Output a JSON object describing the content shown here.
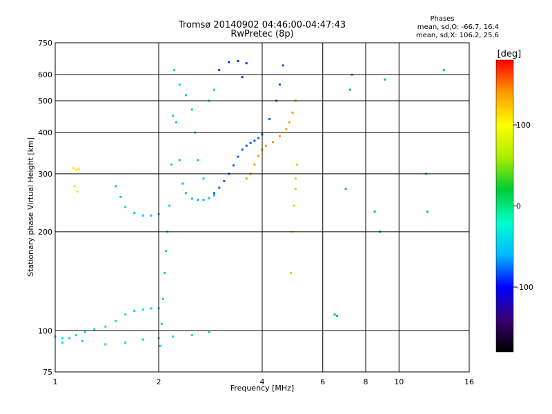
{
  "header": {
    "title_line1": "Tromsø 20140902 04:46:00-04:47:43",
    "title_line2": "RwPretec (8p)",
    "phases_title": "Phases",
    "phases_o": "mean, sd,O: -66.7, 16.4",
    "phases_x": "mean, sd,X: 106.2, 25.6"
  },
  "chart_data": {
    "type": "scatter",
    "title": "Tromsø 20140902 04:46:00-04:47:43",
    "subtitle": "RwPretec (8p)",
    "xlabel": "Frequency [MHz]",
    "ylabel": "Stationary phase Virtual Height [km]",
    "x_scale": "log",
    "y_scale": "log",
    "xlim": [
      1,
      16
    ],
    "ylim": [
      75,
      750
    ],
    "x_ticks": [
      1,
      2,
      4,
      6,
      8,
      10,
      16
    ],
    "y_ticks": [
      75,
      100,
      200,
      300,
      400,
      500,
      600,
      750
    ],
    "grid": true,
    "colorbar": {
      "label": "[deg]",
      "range": [
        -180,
        180
      ],
      "ticks": [
        -100,
        0,
        100
      ],
      "colors": [
        "#000000",
        "#3a0070",
        "#0000ff",
        "#00bbff",
        "#00ffcc",
        "#00cc33",
        "#aaee00",
        "#ffff00",
        "#ff9900",
        "#ff0000"
      ]
    },
    "series": [
      {
        "points": [
          [
            1.0,
            96
          ],
          [
            1.05,
            95
          ],
          [
            1.1,
            95
          ],
          [
            1.15,
            97
          ],
          [
            1.22,
            99
          ],
          [
            1.3,
            101
          ],
          [
            1.4,
            103
          ],
          [
            1.5,
            107
          ],
          [
            1.6,
            112
          ],
          [
            1.7,
            115
          ],
          [
            1.8,
            116
          ],
          [
            1.9,
            117
          ],
          [
            2.0,
            117
          ]
        ],
        "phase": -40
      },
      {
        "points": [
          [
            1.05,
            92
          ],
          [
            1.2,
            93
          ],
          [
            1.4,
            91
          ],
          [
            1.6,
            92
          ],
          [
            1.8,
            94
          ],
          [
            2.0,
            95
          ],
          [
            2.2,
            96
          ],
          [
            2.5,
            97
          ],
          [
            2.8,
            99
          ]
        ],
        "phase": -45
      },
      {
        "points": [
          [
            1.5,
            275
          ],
          [
            1.55,
            255
          ],
          [
            1.6,
            238
          ],
          [
            1.7,
            228
          ],
          [
            1.8,
            224
          ],
          [
            1.9,
            224
          ],
          [
            2.0,
            226
          ]
        ],
        "phase": -55
      },
      {
        "points": [
          [
            2.02,
            90
          ],
          [
            2.04,
            105
          ],
          [
            2.06,
            125
          ],
          [
            2.08,
            150
          ],
          [
            2.1,
            175
          ],
          [
            2.12,
            200
          ],
          [
            2.15,
            240
          ],
          [
            2.18,
            320
          ],
          [
            2.2,
            450
          ],
          [
            2.22,
            620
          ]
        ],
        "phase": -50
      },
      {
        "points": [
          [
            2.25,
            430
          ],
          [
            2.3,
            330
          ],
          [
            2.35,
            280
          ],
          [
            2.4,
            262
          ],
          [
            2.5,
            252
          ],
          [
            2.6,
            250
          ],
          [
            2.7,
            250
          ],
          [
            2.8,
            253
          ],
          [
            2.9,
            258
          ]
        ],
        "phase": -60
      },
      {
        "points": [
          [
            2.3,
            560
          ],
          [
            2.4,
            520
          ],
          [
            2.5,
            470
          ],
          [
            2.55,
            400
          ],
          [
            2.6,
            330
          ],
          [
            2.7,
            290
          ],
          [
            2.8,
            500
          ],
          [
            2.9,
            540
          ]
        ],
        "phase": -50
      },
      {
        "points": [
          [
            2.9,
            262
          ],
          [
            3.0,
            272
          ],
          [
            3.1,
            285
          ],
          [
            3.2,
            300
          ],
          [
            3.3,
            318
          ],
          [
            3.4,
            338
          ],
          [
            3.5,
            355
          ],
          [
            3.6,
            365
          ],
          [
            3.7,
            372
          ],
          [
            3.8,
            378
          ],
          [
            3.9,
            385
          ],
          [
            4.0,
            395
          ],
          [
            4.2,
            440
          ],
          [
            4.4,
            500
          ],
          [
            4.5,
            560
          ],
          [
            4.6,
            640
          ]
        ],
        "phase": -80
      },
      {
        "points": [
          [
            3.0,
            620
          ],
          [
            3.2,
            655
          ],
          [
            3.4,
            660
          ],
          [
            3.6,
            650
          ],
          [
            3.5,
            590
          ]
        ],
        "phase": -90
      },
      {
        "points": [
          [
            3.6,
            290
          ],
          [
            3.7,
            300
          ],
          [
            3.8,
            320
          ],
          [
            3.9,
            340
          ],
          [
            4.0,
            355
          ],
          [
            4.1,
            365
          ],
          [
            4.3,
            375
          ],
          [
            4.5,
            390
          ],
          [
            4.7,
            410
          ],
          [
            4.8,
            430
          ],
          [
            4.9,
            460
          ],
          [
            5.0,
            500
          ]
        ],
        "phase": 140
      },
      {
        "points": [
          [
            4.85,
            150
          ],
          [
            4.9,
            200
          ],
          [
            4.95,
            240
          ],
          [
            5.0,
            270
          ],
          [
            5.0,
            290
          ],
          [
            5.05,
            320
          ]
        ],
        "phase": 60
      },
      {
        "points": [
          [
            1.13,
            312
          ],
          [
            1.15,
            308
          ],
          [
            1.17,
            310
          ],
          [
            1.14,
            275
          ],
          [
            1.16,
            265
          ]
        ],
        "phase": 110
      },
      {
        "points": [
          [
            6.5,
            112
          ],
          [
            6.6,
            111
          ],
          [
            7.0,
            270
          ],
          [
            7.2,
            540
          ],
          [
            7.3,
            600
          ],
          [
            8.5,
            230
          ],
          [
            8.8,
            200
          ],
          [
            9.1,
            580
          ],
          [
            12.0,
            300
          ],
          [
            12.1,
            230
          ],
          [
            13.5,
            620
          ]
        ],
        "phase": 20
      }
    ]
  }
}
